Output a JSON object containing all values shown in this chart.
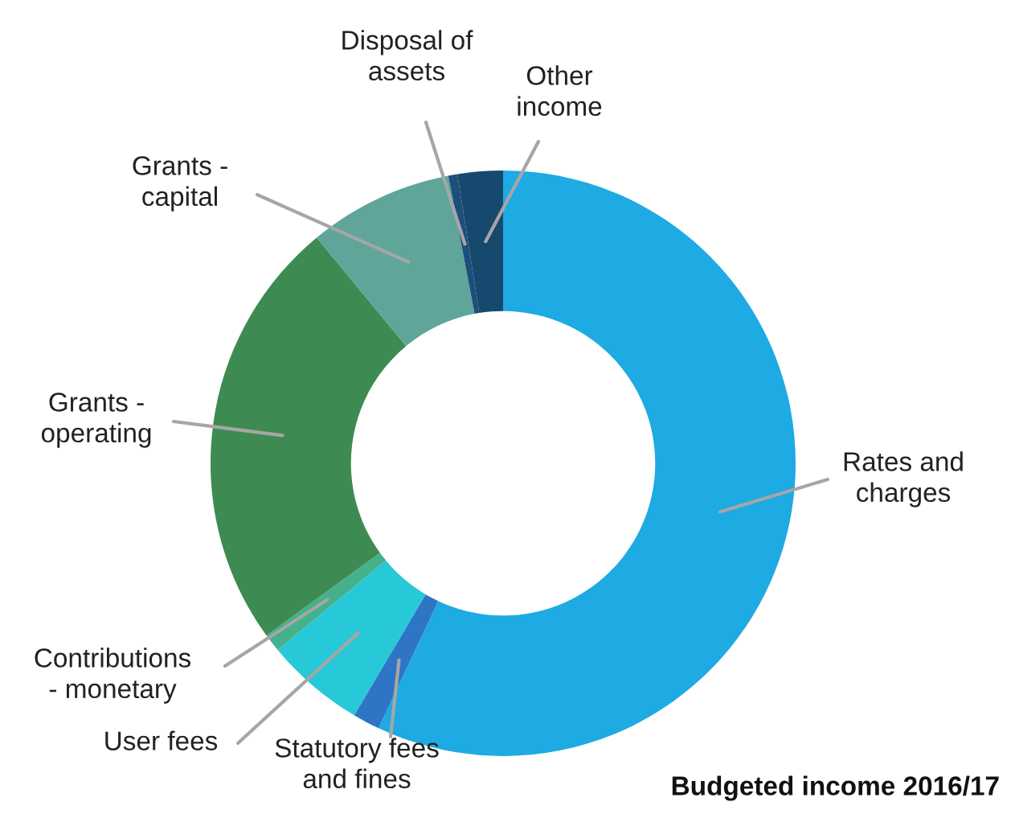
{
  "chart_data": {
    "type": "donut",
    "title": "Budgeted income 2016/17",
    "categories": [
      "Rates and\ncharges",
      "Statutory fees\nand fines",
      "User fees",
      "Contributions\n- monetary",
      "Grants -\noperating",
      "Grants -\ncapital",
      "Disposal of\nassets",
      "Other\nincome"
    ],
    "values": [
      57,
      1.5,
      5.5,
      1,
      24,
      8,
      0.5,
      2.5
    ],
    "colors": [
      "#1eaae2",
      "#2e75c6",
      "#27c8d8",
      "#45b08c",
      "#3d8b52",
      "#5fa59a",
      "#1d4f7a",
      "#17496e"
    ],
    "legend": false
  }
}
